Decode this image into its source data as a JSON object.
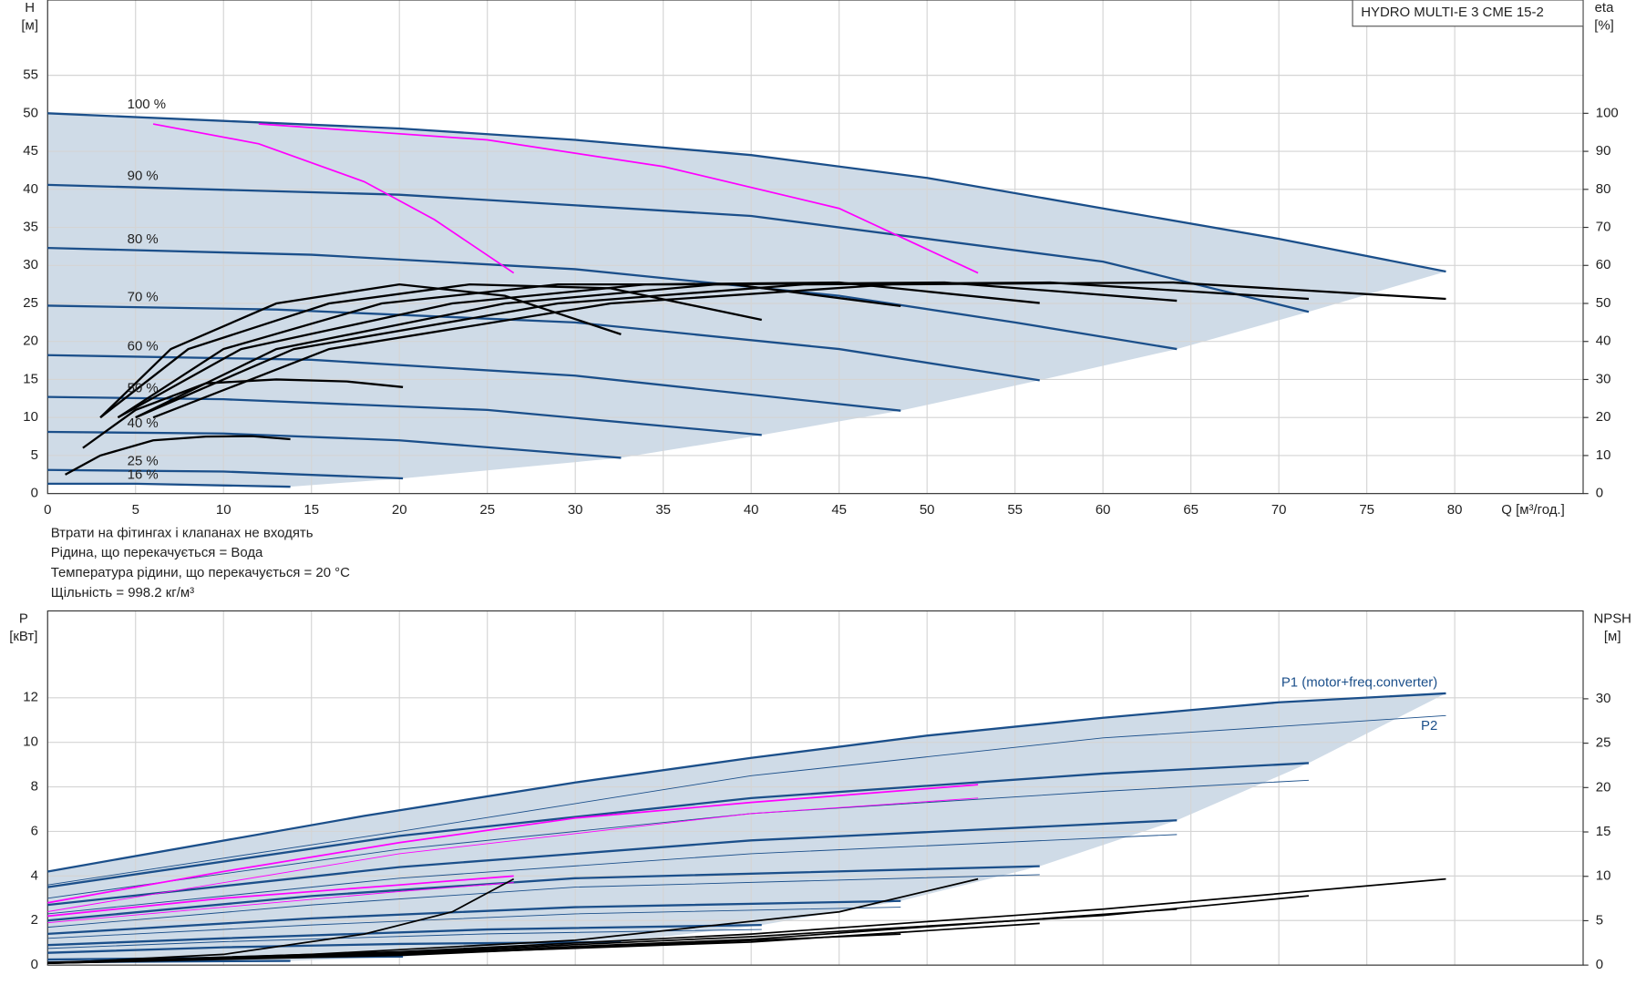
{
  "chart_data": [
    {
      "type": "line",
      "title": "HYDRO MULTI-E 3 CME 15-2",
      "ylabel": "H",
      "yunit": "[м]",
      "y2label": "eta",
      "y2unit": "[%]",
      "xlabel": "Q [м³/год.]",
      "xlim": [
        0,
        87.3
      ],
      "xticks": [
        0,
        5,
        10,
        15,
        20,
        25,
        30,
        35,
        40,
        45,
        50,
        55,
        60,
        65,
        70,
        75,
        80
      ],
      "ylim": [
        0,
        64.9
      ],
      "yticks": [
        0,
        5,
        10,
        15,
        20,
        25,
        30,
        35,
        40,
        45,
        50,
        55
      ],
      "y2lim": [
        0,
        129.8
      ],
      "y2ticks": [
        0,
        10,
        20,
        30,
        40,
        50,
        60,
        70,
        80,
        90,
        100
      ],
      "grid": true,
      "show_xtick_labels": true,
      "region_color": "#cfdbe7",
      "series": [
        {
          "name": "100 %",
          "color": "#1b4f8a",
          "width": 2,
          "x": [
            0,
            10,
            20,
            30,
            40,
            50,
            60,
            70,
            79.5
          ],
          "values": [
            50,
            49,
            48,
            46.5,
            44.5,
            41.5,
            37.5,
            33.5,
            29.2
          ]
        },
        {
          "name": "90 %",
          "color": "#1b4f8a",
          "width": 2,
          "x": [
            0,
            20,
            40,
            60,
            71.7
          ],
          "values": [
            40.6,
            39.3,
            36.5,
            30.5,
            23.9
          ]
        },
        {
          "name": "80 %",
          "color": "#1b4f8a",
          "width": 2,
          "x": [
            0,
            15,
            30,
            45,
            55,
            64.2
          ],
          "values": [
            32.3,
            31.4,
            29.5,
            26,
            22.5,
            19
          ]
        },
        {
          "name": "70 %",
          "color": "#1b4f8a",
          "width": 2,
          "x": [
            0,
            13,
            30,
            45,
            56.4
          ],
          "values": [
            24.7,
            24.2,
            22.5,
            19,
            14.9
          ]
        },
        {
          "name": "60 %",
          "color": "#1b4f8a",
          "width": 2,
          "x": [
            0,
            15,
            30,
            48.5
          ],
          "values": [
            18.2,
            17.6,
            15.5,
            10.9
          ]
        },
        {
          "name": "50 %",
          "color": "#1b4f8a",
          "width": 2,
          "x": [
            0,
            10,
            25,
            40.6
          ],
          "values": [
            12.7,
            12.4,
            11,
            7.7
          ]
        },
        {
          "name": "40 %",
          "color": "#1b4f8a",
          "width": 2,
          "x": [
            0,
            10,
            20,
            32.6
          ],
          "values": [
            8.1,
            7.9,
            7,
            4.7
          ]
        },
        {
          "name": "25 %",
          "color": "#1b4f8a",
          "width": 2,
          "x": [
            0,
            10,
            20.2
          ],
          "values": [
            3.1,
            2.9,
            2
          ]
        },
        {
          "name": "16 %",
          "color": "#1b4f8a",
          "width": 2,
          "x": [
            0,
            5,
            13.8
          ],
          "values": [
            1.3,
            1.3,
            0.9
          ]
        },
        {
          "color": "#ff00ff",
          "width": 1.5,
          "x": [
            6,
            12,
            18,
            22,
            26.5
          ],
          "values": [
            48.6,
            46,
            41,
            36,
            29
          ]
        },
        {
          "color": "#ff00ff",
          "width": 1.5,
          "x": [
            12,
            25,
            35,
            45,
            52.9
          ],
          "values": [
            48.6,
            46.5,
            43,
            37.5,
            29
          ]
        },
        {
          "color": "#000000",
          "width": 2,
          "axis": "y2",
          "x": [
            6,
            16,
            32,
            48,
            64,
            79.5
          ],
          "values": [
            20,
            38,
            50,
            55,
            55.5,
            51.2
          ]
        },
        {
          "color": "#000000",
          "width": 2,
          "axis": "y2",
          "x": [
            5,
            14,
            29,
            43,
            57,
            71.7
          ],
          "values": [
            20,
            38,
            50,
            55,
            55.5,
            51.2
          ]
        },
        {
          "color": "#000000",
          "width": 2,
          "axis": "y2",
          "x": [
            5,
            13,
            26,
            38,
            51,
            64.2
          ],
          "values": [
            20,
            38,
            50,
            55,
            55.5,
            50.7
          ]
        },
        {
          "color": "#000000",
          "width": 2,
          "axis": "y2",
          "x": [
            4,
            11,
            23,
            34,
            45,
            56.4
          ],
          "values": [
            20,
            38,
            50,
            55,
            55.5,
            50.1
          ]
        },
        {
          "color": "#000000",
          "width": 2,
          "axis": "y2",
          "x": [
            4,
            10,
            19,
            29,
            39,
            48.5
          ],
          "values": [
            20,
            38,
            50,
            55,
            55,
            49.3
          ]
        },
        {
          "color": "#000000",
          "width": 2,
          "axis": "y2",
          "x": [
            3,
            8,
            16,
            24,
            32,
            40.6
          ],
          "values": [
            20,
            38,
            50,
            55,
            54,
            45.7
          ]
        },
        {
          "color": "#000000",
          "width": 2,
          "axis": "y2",
          "x": [
            3,
            7,
            13,
            20,
            26,
            32.6
          ],
          "values": [
            20,
            38,
            50,
            55,
            52,
            41.9
          ]
        },
        {
          "color": "#000000",
          "width": 2,
          "axis": "y2",
          "x": [
            2,
            5,
            9,
            13,
            17,
            20.2
          ],
          "values": [
            12,
            22,
            29,
            30,
            29.5,
            28
          ]
        },
        {
          "color": "#000000",
          "width": 2,
          "axis": "y2",
          "x": [
            1,
            3,
            6,
            9,
            11.6,
            13.8
          ],
          "values": [
            5,
            10,
            14,
            15,
            15.1,
            14.3
          ]
        }
      ]
    },
    {
      "type": "line",
      "ylabel": "P",
      "yunit": "[кВт]",
      "y2label": "NPSH",
      "y2unit": "[м]",
      "xlim": [
        0,
        87.3
      ],
      "xticks": [
        0,
        5,
        10,
        15,
        20,
        25,
        30,
        35,
        40,
        45,
        50,
        55,
        60,
        65,
        70,
        75,
        80
      ],
      "ylim": [
        0,
        15.9
      ],
      "yticks": [
        0,
        2,
        4,
        6,
        8,
        10,
        12
      ],
      "y2lim": [
        0,
        39.9
      ],
      "y2ticks": [
        0,
        5,
        10,
        15,
        20,
        25,
        30
      ],
      "grid": true,
      "show_xtick_labels": false,
      "region_color": "#cfdbe7",
      "series": [
        {
          "name": "P1 (motor+freq.converter)",
          "color": "#1b4f8a",
          "width": 2,
          "x": [
            0,
            18,
            30,
            40,
            50,
            60,
            70,
            79.5
          ],
          "values": [
            4.2,
            6.7,
            8.2,
            9.3,
            10.3,
            11.1,
            11.8,
            12.2
          ]
        },
        {
          "color": "#1b4f8a",
          "width": 2,
          "x": [
            0,
            20,
            40,
            60,
            71.7
          ],
          "values": [
            3.5,
            5.8,
            7.5,
            8.6,
            9.07
          ]
        },
        {
          "color": "#1b4f8a",
          "width": 2,
          "x": [
            0,
            20,
            40,
            64.2
          ],
          "values": [
            2.7,
            4.4,
            5.6,
            6.5
          ]
        },
        {
          "color": "#1b4f8a",
          "width": 2,
          "x": [
            0,
            15,
            30,
            56.4
          ],
          "values": [
            2,
            3.1,
            3.9,
            4.44
          ]
        },
        {
          "color": "#1b4f8a",
          "width": 2,
          "x": [
            0,
            15,
            30,
            48.5
          ],
          "values": [
            1.4,
            2.1,
            2.6,
            2.88
          ]
        },
        {
          "color": "#1b4f8a",
          "width": 2,
          "x": [
            0,
            10,
            25,
            40.6
          ],
          "values": [
            0.9,
            1.2,
            1.6,
            1.8
          ]
        },
        {
          "color": "#1b4f8a",
          "width": 2,
          "x": [
            0,
            10,
            20,
            32.6
          ],
          "values": [
            0.55,
            0.8,
            0.95,
            1.04
          ]
        },
        {
          "color": "#1b4f8a",
          "width": 2,
          "x": [
            0,
            10,
            20.2
          ],
          "values": [
            0.25,
            0.33,
            0.38
          ]
        },
        {
          "color": "#1b4f8a",
          "width": 2,
          "x": [
            0,
            7,
            13.8
          ],
          "values": [
            0.12,
            0.16,
            0.19
          ]
        },
        {
          "name": "P2",
          "color": "#1b4f8a",
          "width": 0.8,
          "x": [
            0,
            20,
            40,
            60,
            79.5
          ],
          "values": [
            3.6,
            6,
            8.5,
            10.2,
            11.2
          ]
        },
        {
          "color": "#1b4f8a",
          "width": 0.8,
          "x": [
            0,
            20,
            40,
            60,
            71.7
          ],
          "values": [
            3,
            5.2,
            6.8,
            7.8,
            8.3
          ]
        },
        {
          "color": "#1b4f8a",
          "width": 0.8,
          "x": [
            0,
            20,
            40,
            64.2
          ],
          "values": [
            2.3,
            3.9,
            5,
            5.86
          ]
        },
        {
          "color": "#1b4f8a",
          "width": 0.8,
          "x": [
            0,
            15,
            30,
            56.4
          ],
          "values": [
            1.7,
            2.7,
            3.5,
            4.06
          ]
        },
        {
          "color": "#1b4f8a",
          "width": 0.8,
          "x": [
            0,
            15,
            30,
            48.5
          ],
          "values": [
            1.2,
            1.8,
            2.3,
            2.6
          ]
        },
        {
          "color": "#1b4f8a",
          "width": 0.8,
          "x": [
            0,
            10,
            25,
            40.6
          ],
          "values": [
            0.75,
            1.05,
            1.4,
            1.6
          ]
        },
        {
          "color": "#ff00ff",
          "width": 1.5,
          "x": [
            0,
            10,
            20,
            30,
            40,
            52.9
          ],
          "values": [
            2.8,
            4.2,
            5.5,
            6.6,
            7.3,
            8.1
          ]
        },
        {
          "color": "#ff00ff",
          "width": 0.8,
          "x": [
            0,
            20,
            40,
            52.9
          ],
          "values": [
            2.4,
            5,
            6.8,
            7.5
          ]
        },
        {
          "color": "#ff00ff",
          "width": 1.5,
          "x": [
            0,
            10,
            20,
            26.5
          ],
          "values": [
            2.2,
            3,
            3.6,
            4
          ]
        },
        {
          "color": "#ff00ff",
          "width": 0.8,
          "x": [
            0,
            10,
            20,
            26.5
          ],
          "values": [
            1.9,
            2.6,
            3.3,
            3.7
          ]
        },
        {
          "color": "#000000",
          "width": 1.5,
          "axis": "y2",
          "x": [
            0,
            20,
            40,
            60,
            79.5
          ],
          "values": [
            0.3,
            1.5,
            3.5,
            6.3,
            9.7
          ]
        },
        {
          "color": "#000000",
          "width": 1.5,
          "axis": "y2",
          "x": [
            0,
            20,
            40,
            60,
            71.7
          ],
          "values": [
            0.25,
            1.4,
            3.2,
            5.6,
            7.8
          ]
        },
        {
          "color": "#000000",
          "width": 1.5,
          "axis": "y2",
          "x": [
            0,
            20,
            40,
            64.2
          ],
          "values": [
            0.2,
            1.3,
            2.9,
            6.3
          ]
        },
        {
          "color": "#000000",
          "width": 1.5,
          "axis": "y2",
          "x": [
            0,
            20,
            40,
            56.4
          ],
          "values": [
            0.2,
            1.2,
            2.6,
            4.7
          ]
        },
        {
          "color": "#000000",
          "width": 1.5,
          "axis": "y2",
          "x": [
            0,
            20,
            48.5
          ],
          "values": [
            0.2,
            1.1,
            3.5
          ]
        },
        {
          "color": "#000000",
          "width": 1.5,
          "axis": "y2",
          "x": [
            0,
            15,
            30,
            45,
            52.9
          ],
          "values": [
            0.2,
            1.2,
            2.8,
            6,
            9.7
          ]
        },
        {
          "color": "#000000",
          "width": 1.5,
          "axis": "y2",
          "x": [
            0,
            10,
            18,
            23,
            26.5
          ],
          "values": [
            0.2,
            1.2,
            3.5,
            6,
            9.7
          ]
        }
      ]
    }
  ],
  "notes": [
    "Втрати на фітингах і клапанах не входять",
    "Рідина, що перекачується = Вода",
    "Температура рідини, що перекачується = 20 °C",
    "Щільність = 998.2 кг/м³"
  ]
}
